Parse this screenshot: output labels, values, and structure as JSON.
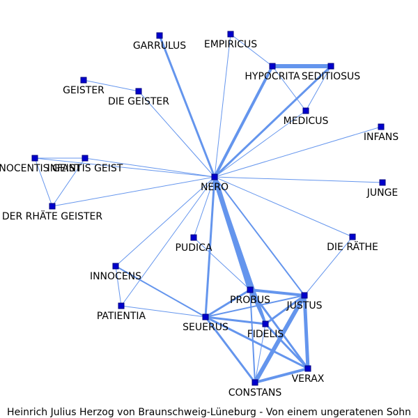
{
  "caption": "Heinrich  Julius  Herzog  von  Braunschweig-Lüneburg  -  Von  einem  ungeratenen  Sohn",
  "colors": {
    "edge": "#6495ed",
    "node_fill": "#0000cd",
    "node_stroke": "#000080",
    "label": "#000000"
  },
  "nodes": [
    {
      "id": "garrulus",
      "label": "GARRULUS"
    },
    {
      "id": "empiricus",
      "label": "EMPIRICUS"
    },
    {
      "id": "hypocrita",
      "label": "HYPOCRITA"
    },
    {
      "id": "seditiosus",
      "label": "SEDITIOSUS"
    },
    {
      "id": "geister",
      "label": "GEISTER"
    },
    {
      "id": "die_geister",
      "label": "DIE GEISTER"
    },
    {
      "id": "medicus",
      "label": "MEDICUS"
    },
    {
      "id": "infans",
      "label": "INFANS"
    },
    {
      "id": "innocentis",
      "label": "INNOCENTIS GEIST"
    },
    {
      "id": "infantis",
      "label": "INFANTIS GEIST"
    },
    {
      "id": "nero",
      "label": "NERO"
    },
    {
      "id": "junge",
      "label": "JUNGE"
    },
    {
      "id": "der_raete",
      "label": "DER RHÄTE GEISTER"
    },
    {
      "id": "pudica",
      "label": "PUDICA"
    },
    {
      "id": "die_raethe",
      "label": "DIE RÄTHE"
    },
    {
      "id": "innocens",
      "label": "INNOCENS"
    },
    {
      "id": "probus",
      "label": "PROBUS"
    },
    {
      "id": "justus",
      "label": "JUSTUS"
    },
    {
      "id": "patientia",
      "label": "PATIENTIA"
    },
    {
      "id": "seuerus",
      "label": "SEUERUS"
    },
    {
      "id": "fidelis",
      "label": "FIDELIS"
    },
    {
      "id": "verax",
      "label": "VERAX"
    },
    {
      "id": "constans",
      "label": "CONSTANS"
    }
  ],
  "edges": [
    {
      "source": "nero",
      "target": "garrulus",
      "weight": 3
    },
    {
      "source": "nero",
      "target": "empiricus",
      "weight": 1
    },
    {
      "source": "nero",
      "target": "hypocrita",
      "weight": 4
    },
    {
      "source": "nero",
      "target": "seditiosus",
      "weight": 3
    },
    {
      "source": "nero",
      "target": "die_geister",
      "weight": 1
    },
    {
      "source": "nero",
      "target": "medicus",
      "weight": 1
    },
    {
      "source": "nero",
      "target": "infans",
      "weight": 1
    },
    {
      "source": "nero",
      "target": "innocentis",
      "weight": 1
    },
    {
      "source": "nero",
      "target": "infantis",
      "weight": 1
    },
    {
      "source": "nero",
      "target": "junge",
      "weight": 1
    },
    {
      "source": "nero",
      "target": "der_raete",
      "weight": 1
    },
    {
      "source": "nero",
      "target": "pudica",
      "weight": 1
    },
    {
      "source": "nero",
      "target": "die_raethe",
      "weight": 1
    },
    {
      "source": "nero",
      "target": "innocens",
      "weight": 1
    },
    {
      "source": "nero",
      "target": "patientia",
      "weight": 1
    },
    {
      "source": "nero",
      "target": "probus",
      "weight": 7
    },
    {
      "source": "nero",
      "target": "justus",
      "weight": 2
    },
    {
      "source": "nero",
      "target": "seuerus",
      "weight": 3
    },
    {
      "source": "nero",
      "target": "fidelis",
      "weight": 4
    },
    {
      "source": "hypocrita",
      "target": "seditiosus",
      "weight": 6
    },
    {
      "source": "empiricus",
      "target": "hypocrita",
      "weight": 1
    },
    {
      "source": "hypocrita",
      "target": "medicus",
      "weight": 1
    },
    {
      "source": "seditiosus",
      "target": "medicus",
      "weight": 1
    },
    {
      "source": "geister",
      "target": "die_geister",
      "weight": 1
    },
    {
      "source": "innocentis",
      "target": "infantis",
      "weight": 1
    },
    {
      "source": "innocentis",
      "target": "der_raete",
      "weight": 1
    },
    {
      "source": "infantis",
      "target": "der_raete",
      "weight": 1
    },
    {
      "source": "die_raethe",
      "target": "justus",
      "weight": 1
    },
    {
      "source": "pudica",
      "target": "probus",
      "weight": 1
    },
    {
      "source": "innocens",
      "target": "patientia",
      "weight": 1
    },
    {
      "source": "innocens",
      "target": "seuerus",
      "weight": 2
    },
    {
      "source": "patientia",
      "target": "seuerus",
      "weight": 1
    },
    {
      "source": "probus",
      "target": "justus",
      "weight": 4
    },
    {
      "source": "probus",
      "target": "seuerus",
      "weight": 3
    },
    {
      "source": "probus",
      "target": "fidelis",
      "weight": 3
    },
    {
      "source": "probus",
      "target": "constans",
      "weight": 2
    },
    {
      "source": "probus",
      "target": "verax",
      "weight": 3
    },
    {
      "source": "justus",
      "target": "seuerus",
      "weight": 2
    },
    {
      "source": "justus",
      "target": "fidelis",
      "weight": 3
    },
    {
      "source": "justus",
      "target": "constans",
      "weight": 6
    },
    {
      "source": "justus",
      "target": "verax",
      "weight": 5
    },
    {
      "source": "seuerus",
      "target": "fidelis",
      "weight": 3
    },
    {
      "source": "seuerus",
      "target": "constans",
      "weight": 3
    },
    {
      "source": "seuerus",
      "target": "verax",
      "weight": 3
    },
    {
      "source": "fidelis",
      "target": "constans",
      "weight": 1
    },
    {
      "source": "fidelis",
      "target": "verax",
      "weight": 3
    },
    {
      "source": "constans",
      "target": "verax",
      "weight": 4
    }
  ]
}
